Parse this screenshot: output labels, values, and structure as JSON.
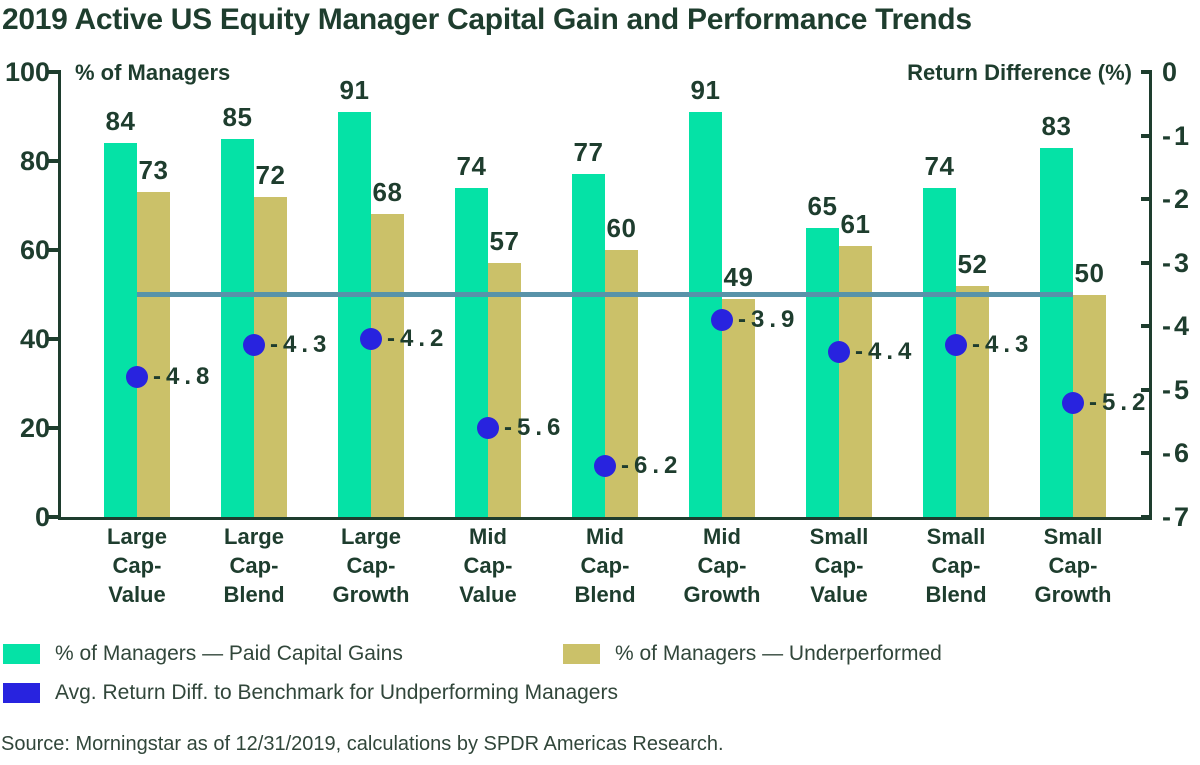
{
  "title": "2019 Active US Equity Manager Capital Gain and Performance Trends",
  "left_axis_label": "% of Managers",
  "right_axis_label": "Return Difference (%)",
  "legend": {
    "paid_capital_gains": "% of Managers — Paid Capital Gains",
    "underperformed": "% of Managers — Underperformed",
    "avg_return_diff": "Avg. Return Diff. to Benchmark for Undperforming Managers"
  },
  "source": "Source: Morningstar as of 12/31/2019, calculations by SPDR Americas Research.",
  "colors": {
    "background": "#FFFFFF",
    "text_dark": "#1E3D2E",
    "text_muted": "#31463A",
    "green_bar": "#05E2A6",
    "tan_bar": "#CBC169",
    "blue_dot": "#2823DF",
    "reference_line": "#5893A9",
    "axis": "#1E3D2E"
  },
  "chart_data": {
    "type": "bar",
    "title": "2019 Active US Equity Manager Capital Gain and Performance Trends",
    "categories": [
      "Large Cap-Value",
      "Large Cap-Blend",
      "Large Cap-Growth",
      "Mid Cap-Value",
      "Mid Cap-Blend",
      "Mid Cap-Growth",
      "Small Cap-Value",
      "Small Cap-Blend",
      "Small Cap-Growth"
    ],
    "category_lines": [
      [
        "Large",
        "Cap-",
        "Value"
      ],
      [
        "Large",
        "Cap-",
        "Blend"
      ],
      [
        "Large",
        "Cap-",
        "Growth"
      ],
      [
        "Mid",
        "Cap-",
        "Value"
      ],
      [
        "Mid",
        "Cap-",
        "Blend"
      ],
      [
        "Mid",
        "Cap-",
        "Growth"
      ],
      [
        "Small",
        "Cap-",
        "Value"
      ],
      [
        "Small",
        "Cap-",
        "Blend"
      ],
      [
        "Small",
        "Cap-",
        "Growth"
      ]
    ],
    "series": [
      {
        "name": "% of Managers — Paid Capital Gains",
        "key": "paid-capital-gains",
        "type": "bar",
        "axis": "left",
        "color": "#05E2A6",
        "values": [
          84,
          85,
          91,
          74,
          77,
          91,
          65,
          74,
          83
        ]
      },
      {
        "name": "% of Managers — Underperformed",
        "key": "underperformed",
        "type": "bar",
        "axis": "left",
        "color": "#CBC169",
        "values": [
          73,
          72,
          68,
          57,
          60,
          49,
          61,
          52,
          50
        ]
      },
      {
        "name": "Avg. Return Diff. to Benchmark for Undperforming Managers",
        "key": "return-diff",
        "type": "scatter",
        "axis": "right",
        "color": "#2823DF",
        "values": [
          -4.8,
          -4.3,
          -4.2,
          -5.6,
          -6.2,
          -3.9,
          -4.4,
          -4.3,
          -5.2
        ]
      }
    ],
    "left_axis": {
      "label": "% of Managers",
      "range": [
        0,
        100
      ],
      "ticks": [
        0,
        20,
        40,
        60,
        80,
        100
      ]
    },
    "right_axis": {
      "label": "Return Difference (%)",
      "range": [
        0,
        -7
      ],
      "ticks": [
        0,
        -1,
        -2,
        -3,
        -4,
        -5,
        -6,
        -7
      ]
    },
    "reference_line": {
      "value": 50,
      "axis": "left",
      "color": "#5893A9"
    },
    "grid": false,
    "legend_position": "bottom",
    "source": "Source: Morningstar as of 12/31/2019, calculations by SPDR Americas Research."
  }
}
